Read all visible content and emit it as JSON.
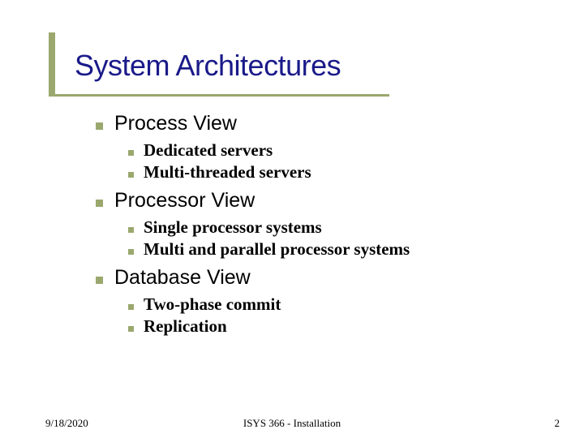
{
  "title": "System Architectures",
  "accent_color": "#9aa86e",
  "title_color": "#1a1a8a",
  "sections": [
    {
      "heading": "Process View",
      "items": [
        "Dedicated servers",
        "Multi-threaded servers"
      ]
    },
    {
      "heading": "Processor View",
      "items": [
        "Single processor systems",
        "Multi and parallel processor systems"
      ]
    },
    {
      "heading": "Database View",
      "items": [
        "Two-phase commit",
        "Replication"
      ]
    }
  ],
  "footer": {
    "date": "9/18/2020",
    "center": "ISYS 366 - Installation",
    "page": "2"
  }
}
